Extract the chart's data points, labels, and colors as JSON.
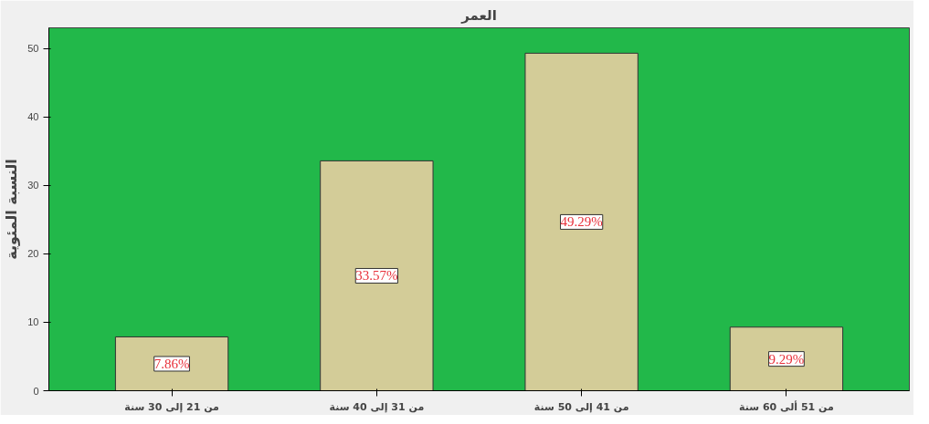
{
  "chart_data": {
    "type": "bar",
    "title": "العمر",
    "ylabel": "النسبة المئوية",
    "categories": [
      "من 21 إلى 30 سنة",
      "من 31 إلى 40 سنة",
      "من 41 إلى 50 سنة",
      "من 51 ألى 60 سنة"
    ],
    "values": [
      7.86,
      33.57,
      49.29,
      9.29
    ],
    "value_labels": [
      "7.86%",
      "33.57%",
      "49.29%",
      "9.29%"
    ],
    "color": "#d3cc98",
    "ylim": [
      0,
      53
    ],
    "yticks": [
      0,
      10,
      20,
      30,
      40,
      50
    ],
    "grid": false
  }
}
